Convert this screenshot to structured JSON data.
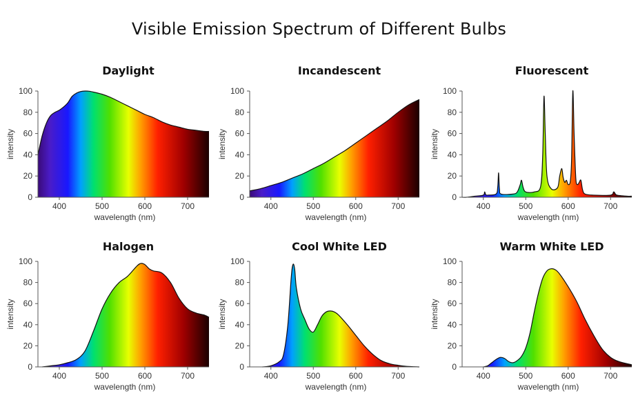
{
  "title": "Visible Emission Spectrum of Different Bulbs",
  "chart_data": [
    {
      "type": "area",
      "title": "Daylight",
      "xlabel": "wavelength (nm)",
      "ylabel": "intensity",
      "xlim": [
        350,
        750
      ],
      "ylim": [
        0,
        100
      ],
      "xticks": [
        400,
        500,
        600,
        700
      ],
      "yticks": [
        0,
        20,
        40,
        60,
        80,
        100
      ],
      "x": [
        350,
        360,
        370,
        380,
        390,
        400,
        410,
        420,
        430,
        440,
        450,
        460,
        470,
        480,
        500,
        520,
        540,
        560,
        580,
        600,
        620,
        640,
        660,
        680,
        700,
        720,
        740,
        750
      ],
      "y": [
        40,
        58,
        70,
        77,
        80,
        82,
        85,
        89,
        95,
        98,
        99.5,
        100,
        99.8,
        99,
        97,
        94,
        90,
        86,
        82,
        78,
        75,
        71,
        68,
        66,
        64,
        63,
        62,
        62
      ]
    },
    {
      "type": "area",
      "title": "Incandescent",
      "xlabel": "wavelength (nm)",
      "ylabel": "intensity",
      "xlim": [
        350,
        750
      ],
      "ylim": [
        0,
        100
      ],
      "xticks": [
        400,
        500,
        600,
        700
      ],
      "yticks": [
        0,
        20,
        40,
        60,
        80,
        100
      ],
      "x": [
        350,
        375,
        400,
        425,
        450,
        475,
        500,
        525,
        550,
        575,
        600,
        625,
        650,
        675,
        700,
        725,
        750
      ],
      "y": [
        6,
        8,
        11,
        14,
        18,
        22,
        27,
        32,
        38,
        44,
        51,
        58,
        65,
        72,
        80,
        87,
        92
      ]
    },
    {
      "type": "area",
      "title": "Fluorescent",
      "xlabel": "wavelength (nm)",
      "ylabel": "intensity",
      "xlim": [
        350,
        750
      ],
      "ylim": [
        0,
        100
      ],
      "xticks": [
        400,
        500,
        600,
        700
      ],
      "yticks": [
        0,
        20,
        40,
        60,
        80,
        100
      ],
      "x": [
        350,
        360,
        380,
        400,
        403,
        405,
        407,
        410,
        430,
        434,
        436,
        438,
        442,
        470,
        480,
        487,
        490,
        494,
        500,
        520,
        535,
        540,
        543,
        546,
        550,
        560,
        575,
        580,
        585,
        588,
        592,
        596,
        600,
        605,
        608,
        611,
        614,
        618,
        622,
        626,
        630,
        634,
        640,
        660,
        700,
        707,
        710,
        715,
        740,
        750
      ],
      "y": [
        0,
        0,
        1,
        2,
        5,
        3,
        2,
        2,
        3,
        10,
        23,
        8,
        3,
        3,
        5,
        12,
        16,
        9,
        5,
        5,
        10,
        40,
        95,
        60,
        20,
        8,
        9,
        20,
        27,
        19,
        14,
        16,
        12,
        15,
        35,
        100,
        60,
        18,
        12,
        14,
        16,
        7,
        3,
        2,
        2,
        5,
        4,
        2,
        1,
        1
      ]
    },
    {
      "type": "area",
      "title": "Halogen",
      "xlabel": "wavelength (nm)",
      "ylabel": "intensity",
      "xlim": [
        350,
        750
      ],
      "ylim": [
        0,
        100
      ],
      "xticks": [
        400,
        500,
        600,
        700
      ],
      "yticks": [
        0,
        20,
        40,
        60,
        80,
        100
      ],
      "x": [
        360,
        380,
        400,
        420,
        440,
        460,
        480,
        500,
        520,
        540,
        560,
        580,
        590,
        600,
        610,
        620,
        640,
        660,
        680,
        700,
        720,
        740,
        750
      ],
      "y": [
        0,
        1,
        2,
        4,
        7,
        15,
        34,
        55,
        70,
        80,
        86,
        95,
        98,
        97,
        93,
        91,
        89,
        80,
        65,
        55,
        51,
        49,
        47
      ]
    },
    {
      "type": "area",
      "title": "Cool White LED",
      "xlabel": "wavelength (nm)",
      "ylabel": "intensity",
      "xlim": [
        350,
        750
      ],
      "ylim": [
        0,
        100
      ],
      "xticks": [
        400,
        500,
        600,
        700
      ],
      "yticks": [
        0,
        20,
        40,
        60,
        80,
        100
      ],
      "x": [
        380,
        400,
        420,
        430,
        440,
        448,
        452,
        456,
        460,
        470,
        480,
        490,
        500,
        510,
        520,
        530,
        540,
        550,
        560,
        580,
        600,
        620,
        640,
        660,
        680,
        700,
        720,
        750
      ],
      "y": [
        0,
        1,
        5,
        12,
        40,
        85,
        97,
        93,
        75,
        55,
        45,
        36,
        33,
        40,
        48,
        52,
        53,
        52,
        49,
        40,
        30,
        20,
        12,
        6,
        3,
        1.5,
        0.5,
        0
      ]
    },
    {
      "type": "area",
      "title": "Warm White LED",
      "xlabel": "wavelength (nm)",
      "ylabel": "intensity",
      "xlim": [
        350,
        750
      ],
      "ylim": [
        0,
        100
      ],
      "xticks": [
        400,
        500,
        600,
        700
      ],
      "yticks": [
        0,
        20,
        40,
        60,
        80,
        100
      ],
      "x": [
        400,
        410,
        420,
        430,
        440,
        450,
        460,
        470,
        480,
        490,
        500,
        510,
        520,
        530,
        540,
        550,
        560,
        570,
        580,
        600,
        620,
        640,
        660,
        680,
        700,
        720,
        750
      ],
      "y": [
        0,
        1,
        4,
        7,
        9,
        8,
        5,
        4,
        6,
        10,
        18,
        32,
        52,
        70,
        84,
        91,
        93,
        92,
        88,
        76,
        62,
        45,
        30,
        17,
        9,
        5,
        2
      ]
    }
  ]
}
